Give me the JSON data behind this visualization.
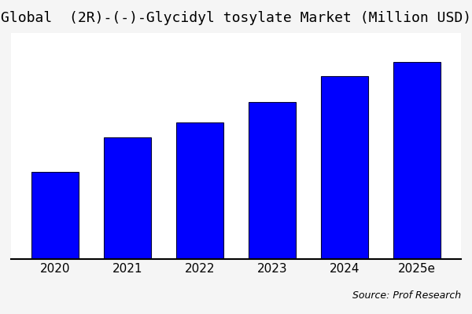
{
  "title": "Global  (2R)-(-)-Glycidyl tosylate Market (Million USD)",
  "categories": [
    "2020",
    "2021",
    "2022",
    "2023",
    "2024",
    "2025e"
  ],
  "values": [
    30,
    42,
    47,
    54,
    63,
    68
  ],
  "bar_color": "#0000FF",
  "bar_edgecolor": "#000033",
  "bar_linewidth": 0.8,
  "background_color": "#f5f5f5",
  "plot_bg_color": "#ffffff",
  "source_text": "Source: Prof Research",
  "title_fontsize": 13,
  "tick_fontsize": 11,
  "source_fontsize": 9,
  "ylim": [
    0,
    78
  ],
  "bar_width": 0.65
}
